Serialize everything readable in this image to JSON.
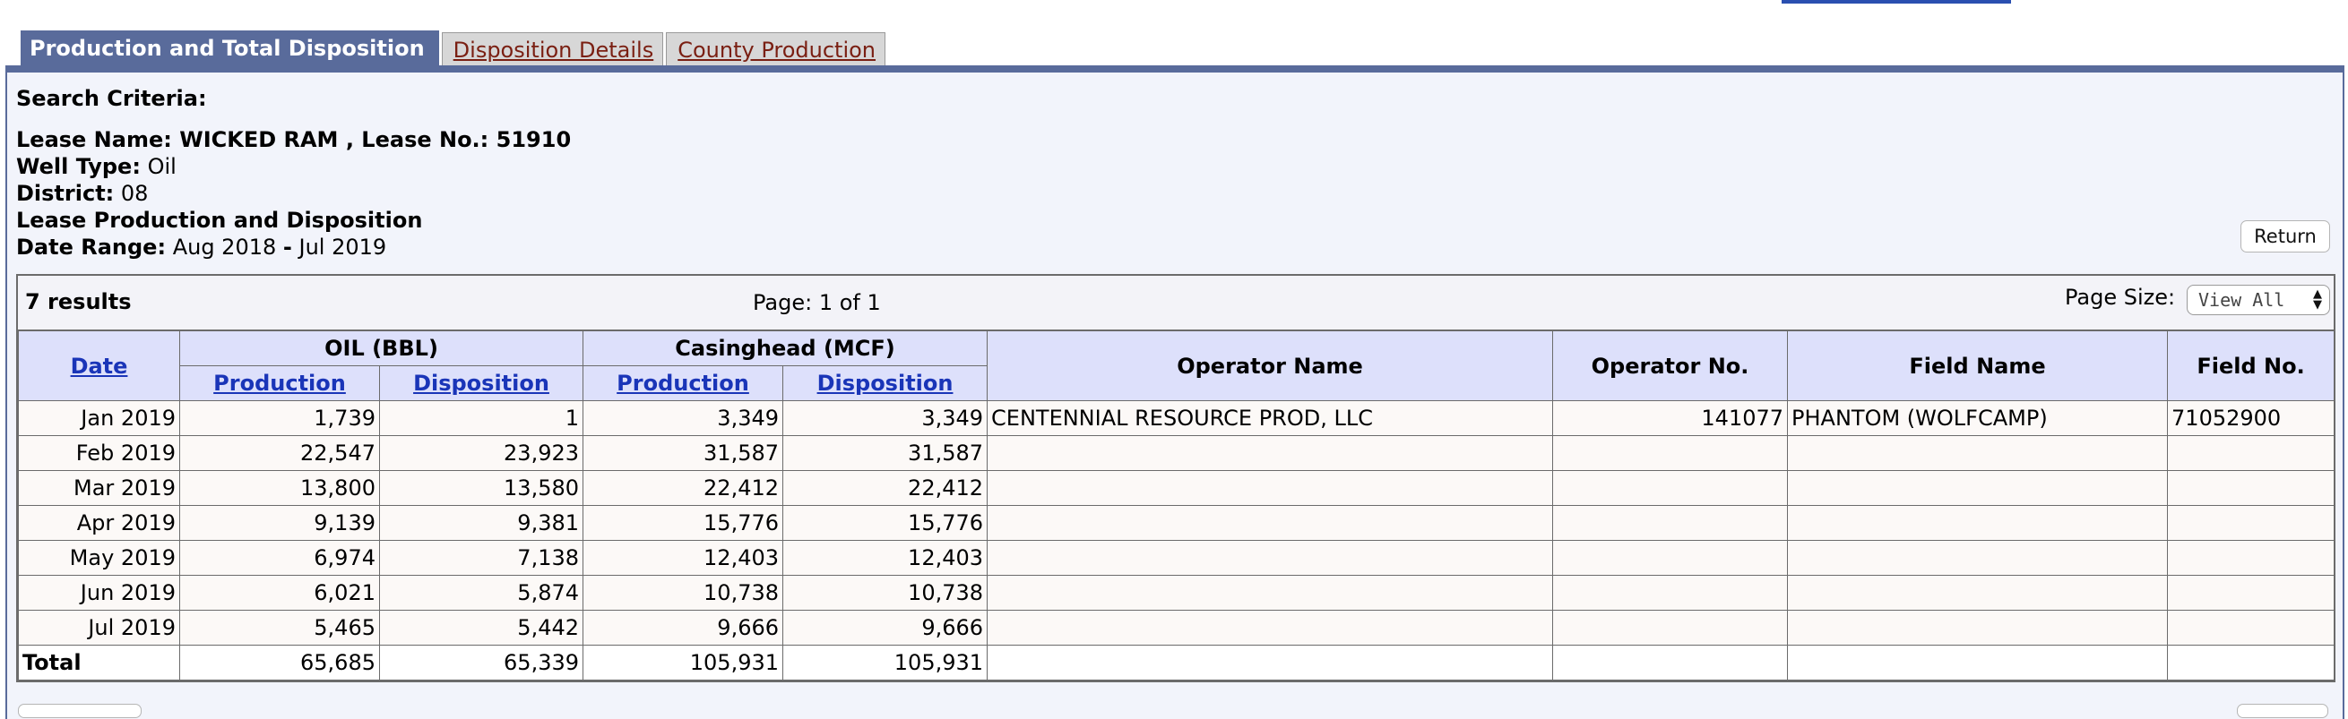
{
  "tabs": [
    {
      "label": "Production and Total Disposition",
      "active": true
    },
    {
      "label": "Disposition Details",
      "active": false
    },
    {
      "label": "County Production",
      "active": false
    }
  ],
  "criteria": {
    "heading": "Search Criteria:",
    "lease_name_label": "Lease Name:",
    "lease_name": "WICKED RAM",
    "lease_no_label": "Lease No.:",
    "lease_no": "51910",
    "well_type_label": "Well Type:",
    "well_type": "Oil",
    "district_label": "District:",
    "district": "08",
    "report_label": "Lease Production and Disposition",
    "date_range_label": "Date Range:",
    "date_start": "Aug 2018",
    "date_sep": "-",
    "date_end": "Jul 2019"
  },
  "return_label": "Return",
  "results": {
    "count": "7 results",
    "page": "Page: 1 of 1",
    "page_size_label": "Page Size:",
    "page_size_value": "View All"
  },
  "table": {
    "headers": {
      "date": "Date",
      "oil_group": "OIL (BBL)",
      "gas_group": "Casinghead (MCF)",
      "production": "Production",
      "disposition": "Disposition",
      "operator_name": "Operator Name",
      "operator_no": "Operator No.",
      "field_name": "Field Name",
      "field_no": "Field No."
    },
    "rows": [
      {
        "date": "Jan 2019",
        "oil_prod": "1,739",
        "oil_disp": "1",
        "gas_prod": "3,349",
        "gas_disp": "3,349",
        "operator_name": "CENTENNIAL RESOURCE PROD, LLC",
        "operator_no": "141077",
        "field_name": "PHANTOM (WOLFCAMP)",
        "field_no": "71052900"
      },
      {
        "date": "Feb 2019",
        "oil_prod": "22,547",
        "oil_disp": "23,923",
        "gas_prod": "31,587",
        "gas_disp": "31,587",
        "operator_name": "",
        "operator_no": "",
        "field_name": "",
        "field_no": ""
      },
      {
        "date": "Mar 2019",
        "oil_prod": "13,800",
        "oil_disp": "13,580",
        "gas_prod": "22,412",
        "gas_disp": "22,412",
        "operator_name": "",
        "operator_no": "",
        "field_name": "",
        "field_no": ""
      },
      {
        "date": "Apr 2019",
        "oil_prod": "9,139",
        "oil_disp": "9,381",
        "gas_prod": "15,776",
        "gas_disp": "15,776",
        "operator_name": "",
        "operator_no": "",
        "field_name": "",
        "field_no": ""
      },
      {
        "date": "May 2019",
        "oil_prod": "6,974",
        "oil_disp": "7,138",
        "gas_prod": "12,403",
        "gas_disp": "12,403",
        "operator_name": "",
        "operator_no": "",
        "field_name": "",
        "field_no": ""
      },
      {
        "date": "Jun 2019",
        "oil_prod": "6,021",
        "oil_disp": "5,874",
        "gas_prod": "10,738",
        "gas_disp": "10,738",
        "operator_name": "",
        "operator_no": "",
        "field_name": "",
        "field_no": ""
      },
      {
        "date": "Jul 2019",
        "oil_prod": "5,465",
        "oil_disp": "5,442",
        "gas_prod": "9,666",
        "gas_disp": "9,666",
        "operator_name": "",
        "operator_no": "",
        "field_name": "",
        "field_no": ""
      }
    ],
    "total": {
      "label": "Total",
      "oil_prod": "65,685",
      "oil_disp": "65,339",
      "gas_prod": "105,931",
      "gas_disp": "105,931"
    }
  }
}
